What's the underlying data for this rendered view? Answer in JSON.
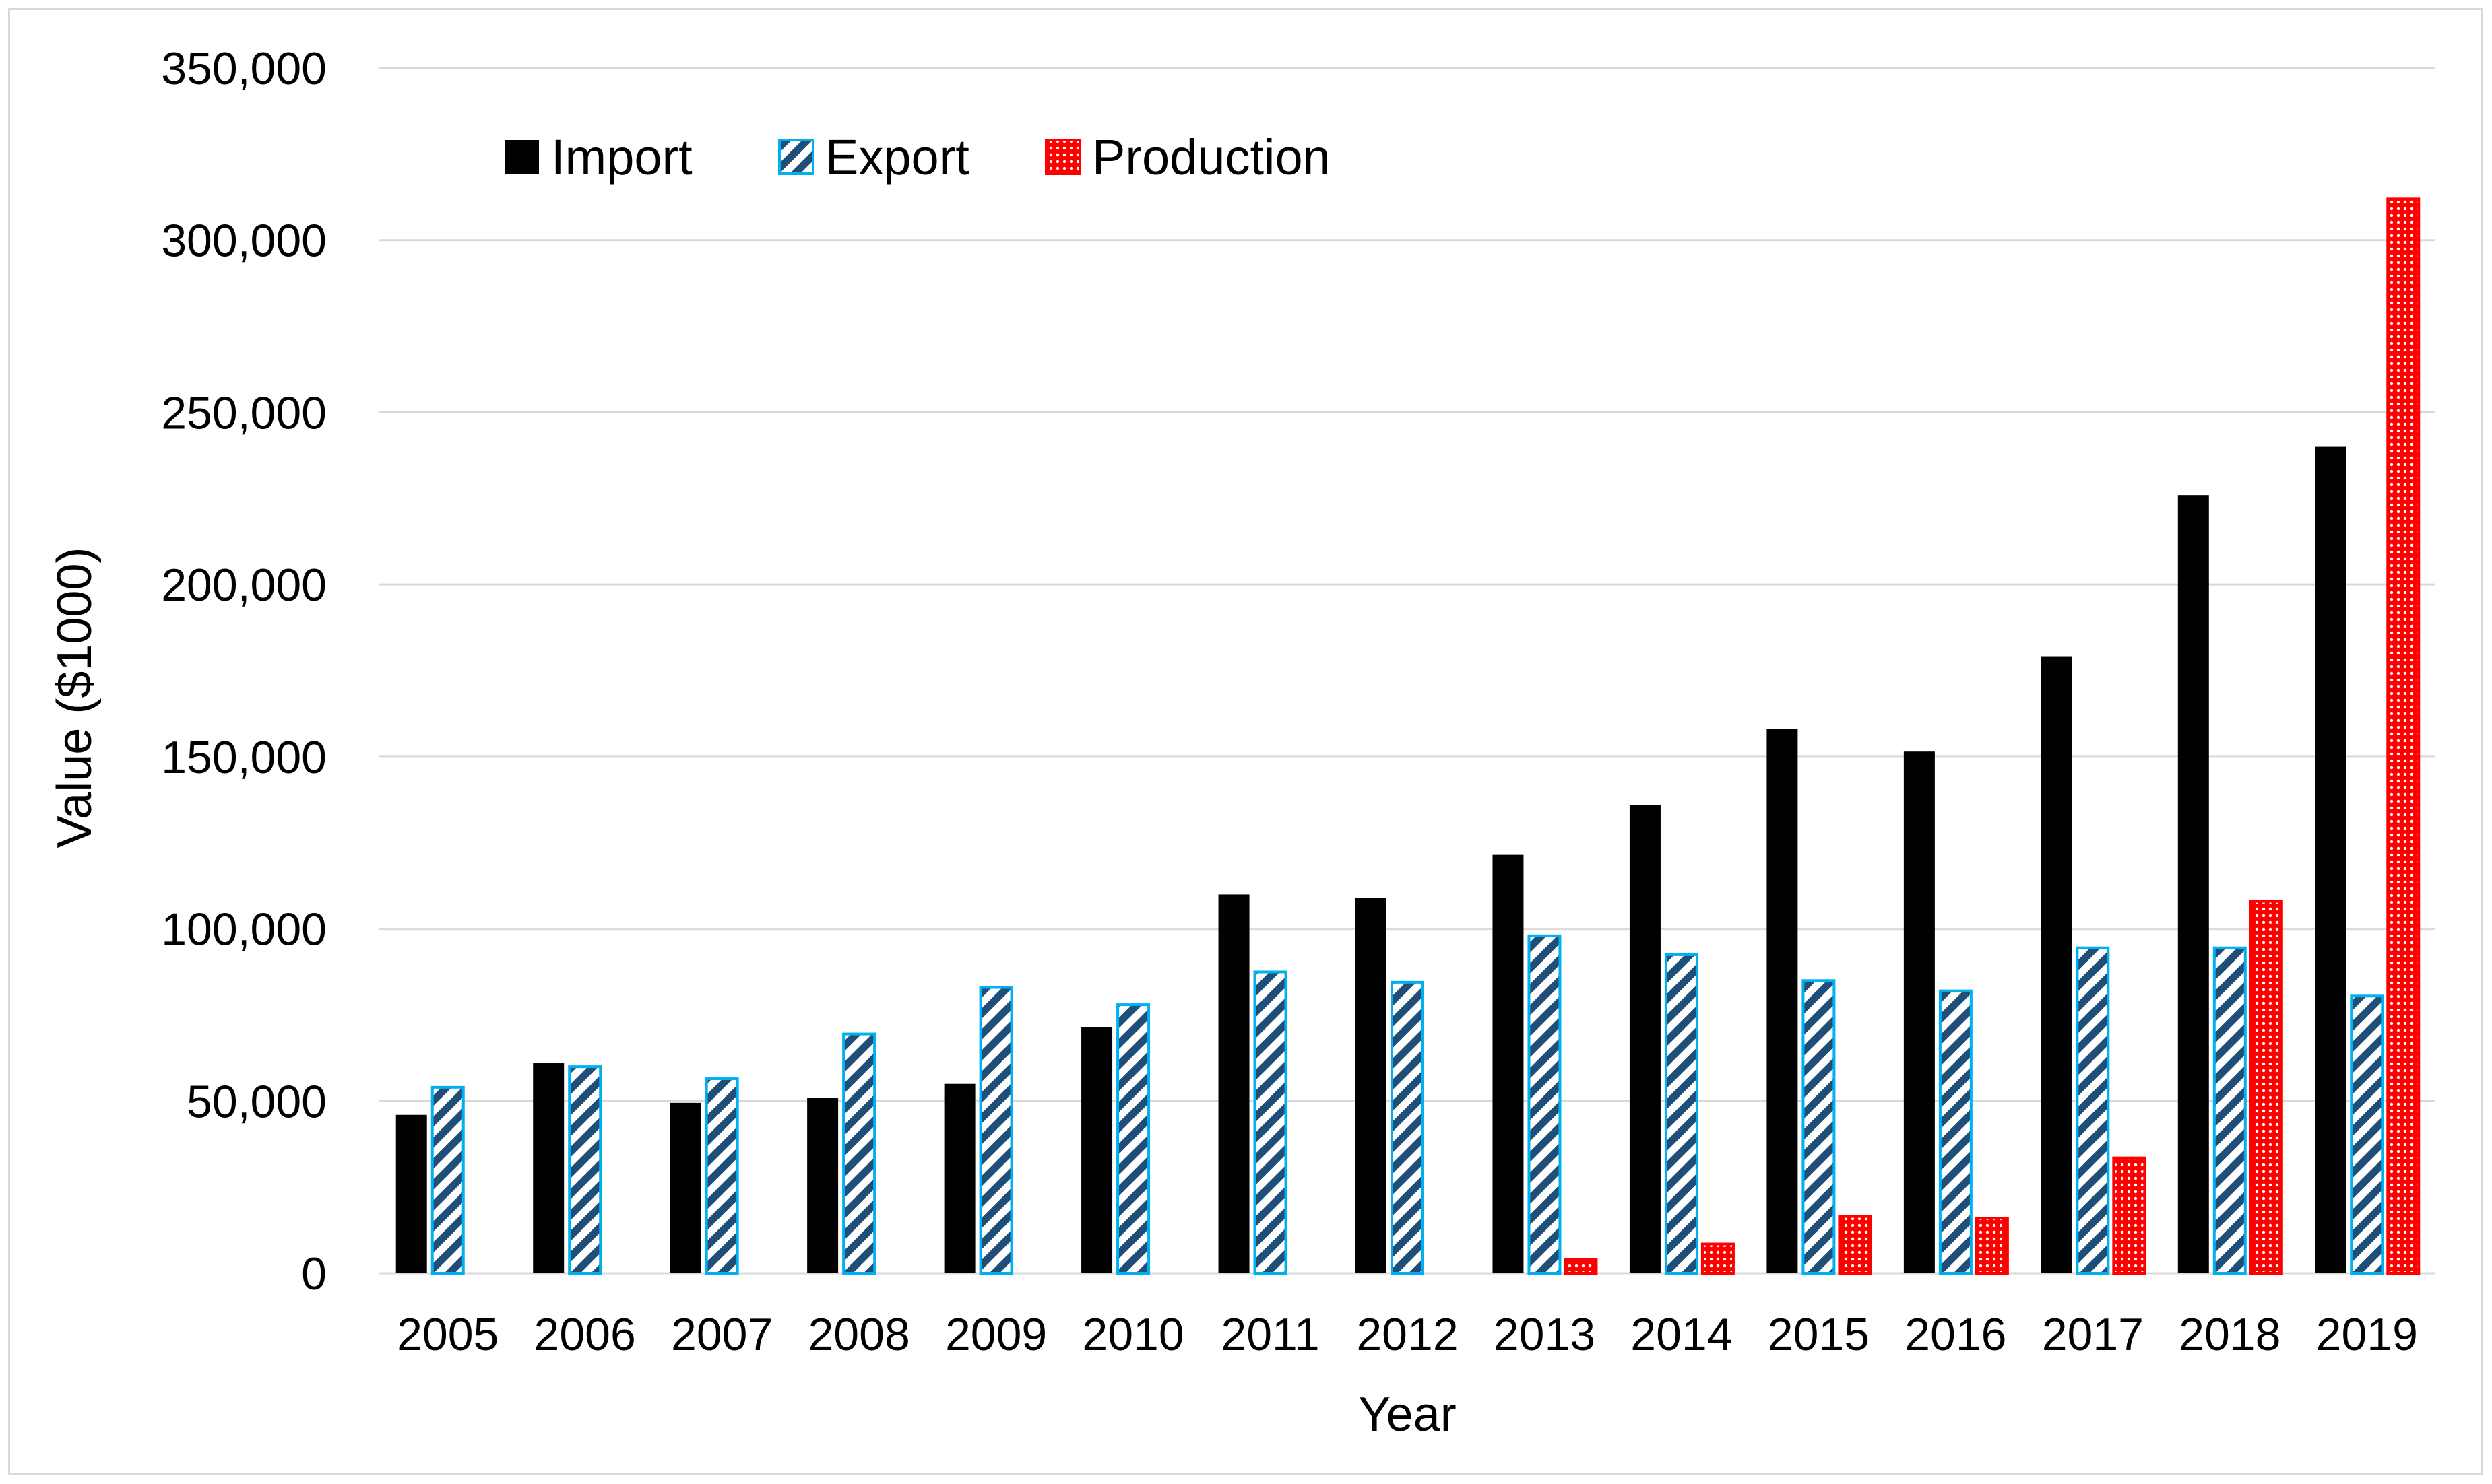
{
  "chart_data": {
    "type": "bar",
    "title": "",
    "xlabel": "Year",
    "ylabel": "Value ($1000)",
    "ylim": [
      0,
      350000
    ],
    "yticks": [
      0,
      50000,
      100000,
      150000,
      200000,
      250000,
      300000,
      350000
    ],
    "ytick_labels": [
      "0",
      "50,000",
      "100,000",
      "150,000",
      "200,000",
      "250,000",
      "300,000",
      "350,000"
    ],
    "grid": true,
    "legend_position": "top-left",
    "categories": [
      "2005",
      "2006",
      "2007",
      "2008",
      "2009",
      "2010",
      "2011",
      "2012",
      "2013",
      "2014",
      "2015",
      "2016",
      "2017",
      "2018",
      "2019"
    ],
    "series": [
      {
        "name": "Import",
        "fill": "solid",
        "color": "#000000",
        "values": [
          46000,
          61000,
          49500,
          51000,
          55000,
          71500,
          110000,
          109000,
          121500,
          136000,
          158000,
          151500,
          179000,
          226000,
          240000
        ]
      },
      {
        "name": "Export",
        "fill": "diagonal-stripes",
        "color": "#00b0f0",
        "stripe_color": "#1f4e79",
        "values": [
          54000,
          60000,
          56500,
          69500,
          83000,
          78000,
          87500,
          84500,
          98000,
          92500,
          85000,
          82000,
          94500,
          94500,
          80500
        ]
      },
      {
        "name": "Production",
        "fill": "dotted",
        "color": "#ff0000",
        "values": [
          0,
          0,
          0,
          0,
          0,
          0,
          0,
          0,
          4000,
          8500,
          16500,
          16000,
          33500,
          108000,
          312000
        ]
      }
    ]
  }
}
